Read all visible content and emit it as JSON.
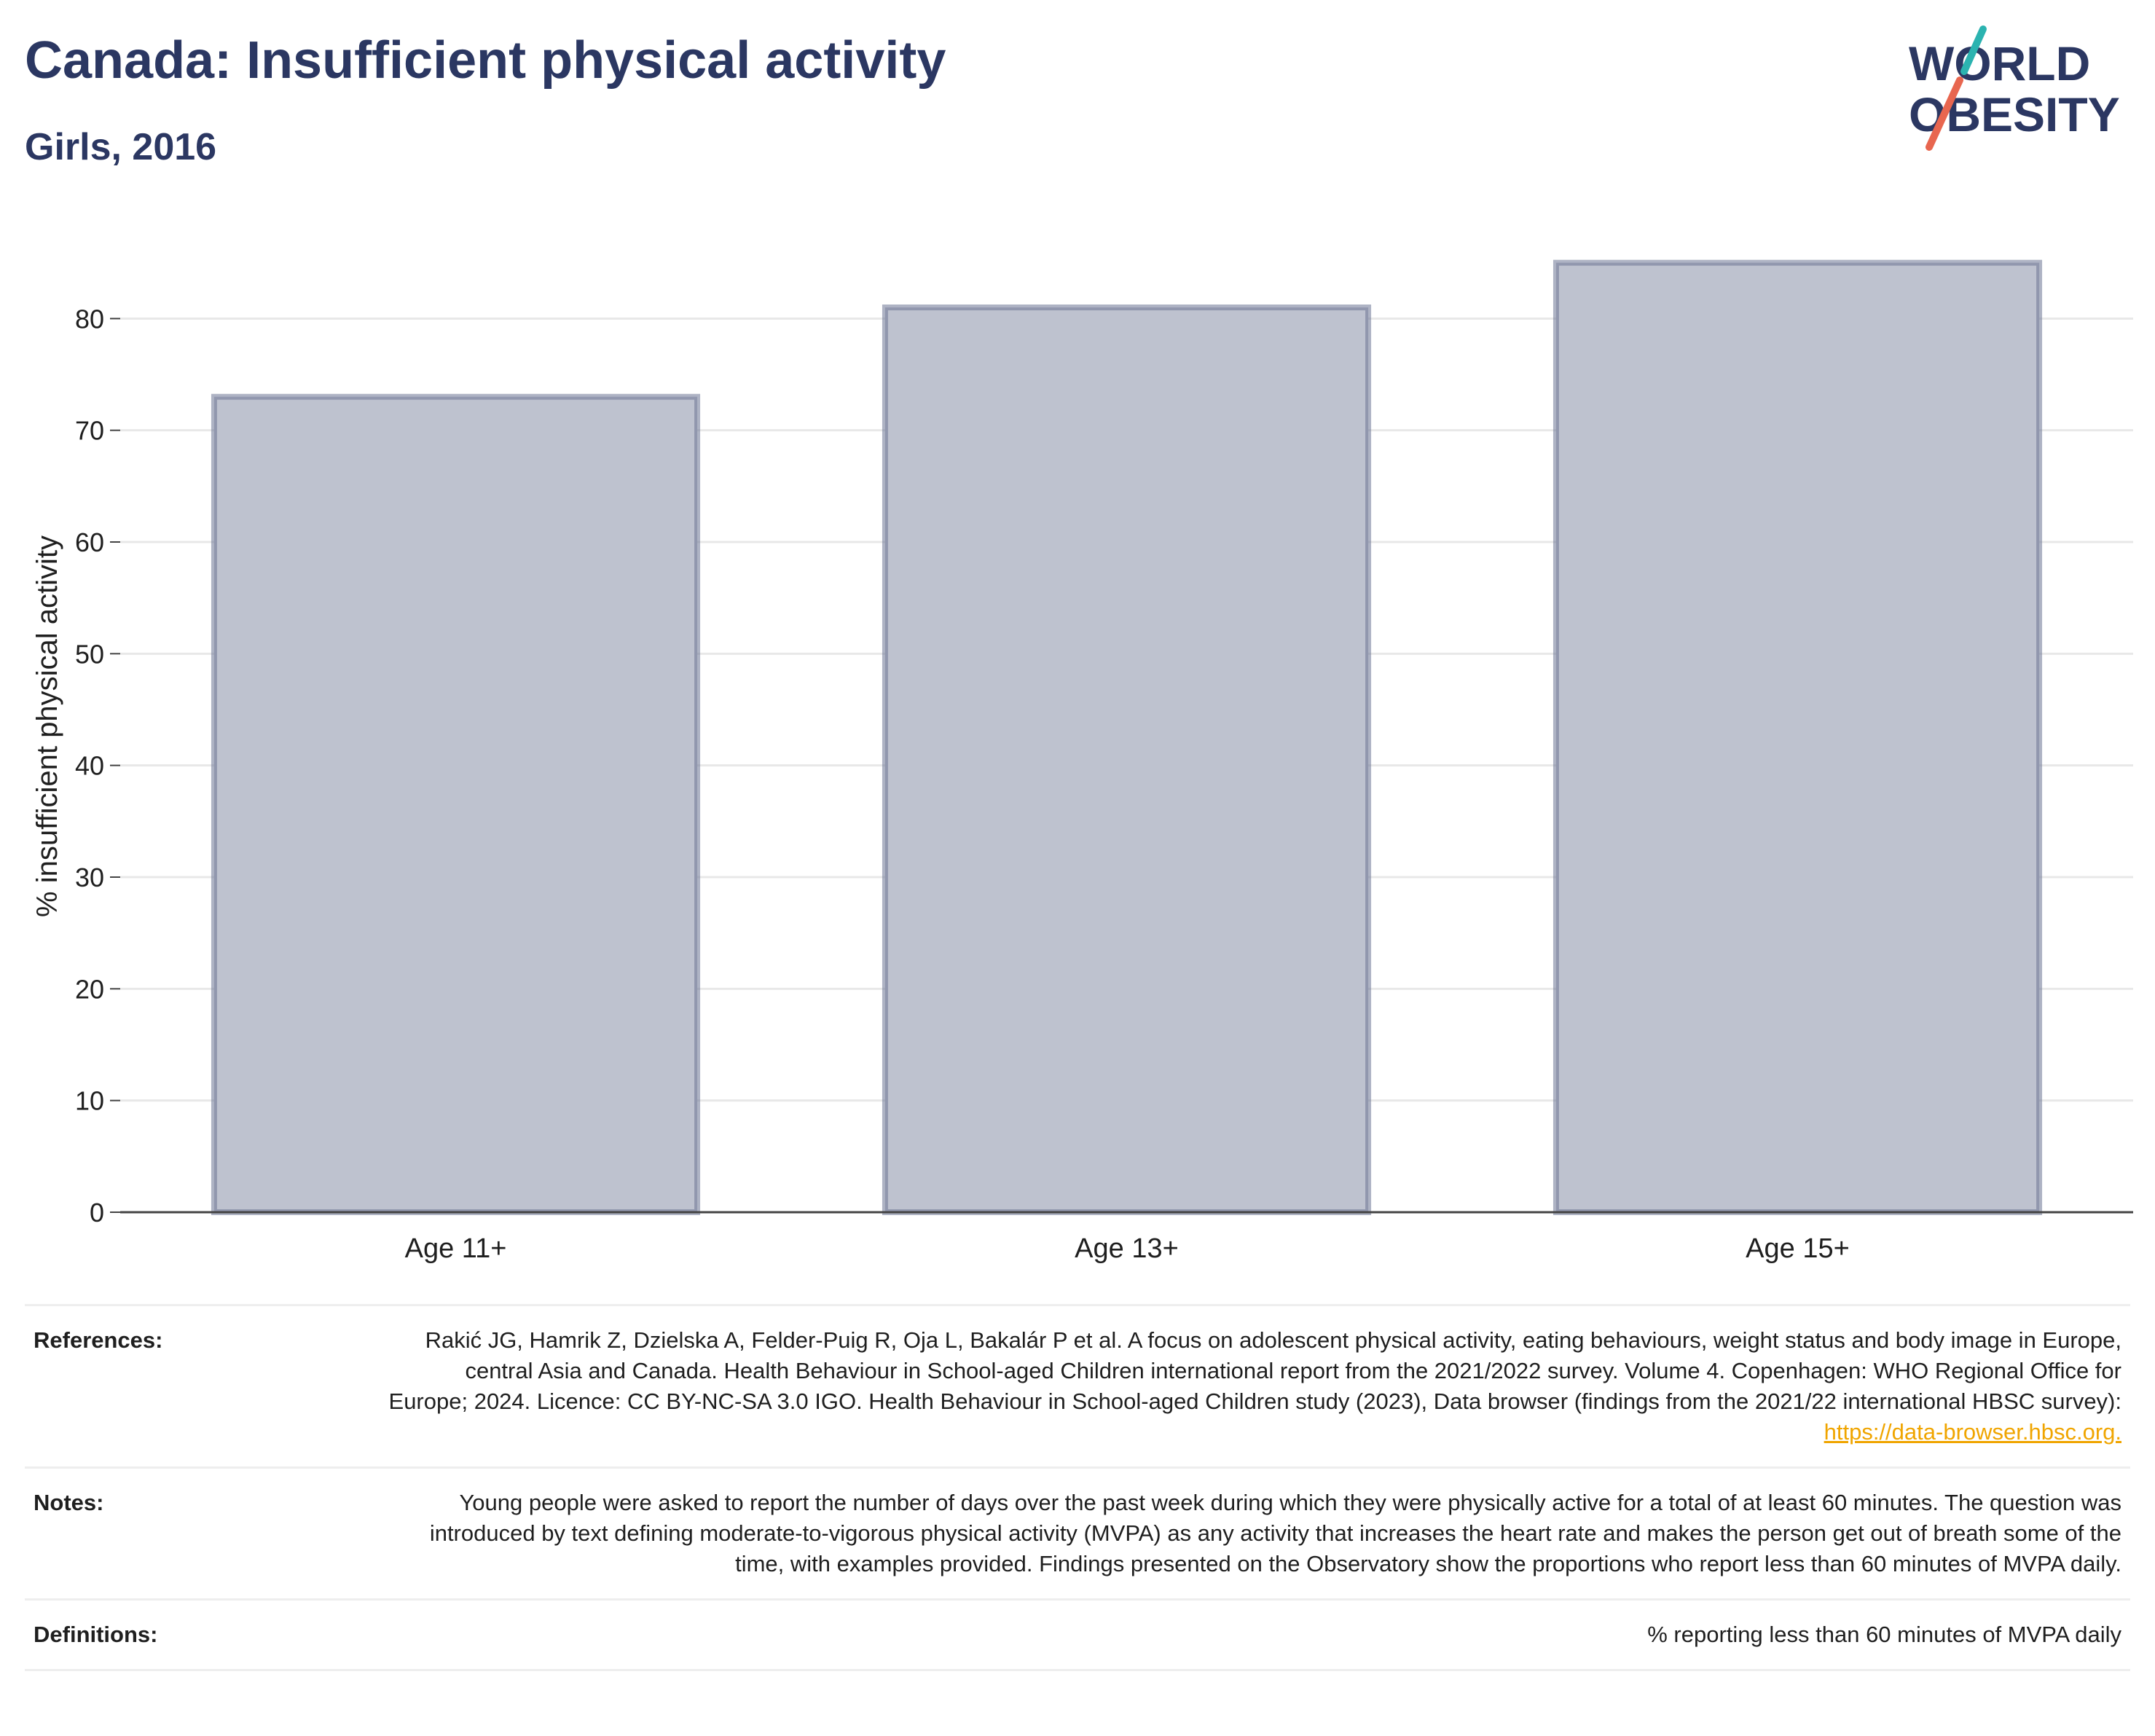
{
  "header": {
    "title": "Canada: Insufficient physical activity",
    "subtitle": "Girls, 2016"
  },
  "logo": {
    "line1": "WORLD",
    "line2": "OBESITY",
    "text_color": "#2b3762",
    "slash_top_color": "#2bb3b0",
    "slash_bottom_color": "#e8664f"
  },
  "chart_data": {
    "type": "bar",
    "categories": [
      "Age 11+",
      "Age 13+",
      "Age 15+"
    ],
    "values": [
      73,
      81,
      85
    ],
    "ylabel": "% insufficient physical activity",
    "ylim": [
      0,
      87
    ],
    "yticks": [
      0,
      10,
      20,
      30,
      40,
      50,
      60,
      70,
      80
    ],
    "grid": true,
    "bar_fill": "#bec2cf",
    "bar_stroke": "#6b7494"
  },
  "meta": {
    "references": {
      "label": "References:",
      "text": "Rakić JG, Hamrik Z, Dzielska A, Felder-Puig R, Oja L, Bakalár P et al. A focus on adolescent physical activity, eating behaviours, weight status and body image in Europe, central Asia and Canada. Health Behaviour in School-aged Children international report from the 2021/2022 survey. Volume 4. Copenhagen: WHO Regional Office for Europe; 2024. Licence: CC BY-NC-SA 3.0 IGO. Health Behaviour in School-aged Children study (2023), Data browser (findings from the 2021/22 international HBSC survey): ",
      "link": "https://data-browser.hbsc.org."
    },
    "notes": {
      "label": "Notes:",
      "text": "Young people were asked to report the number of days over the past week during which they were physically active for a total of at least 60 minutes. The question was introduced by text defining moderate-to-vigorous physical activity (MVPA) as any activity that increases the heart rate and makes the person get out of breath some of the time, with examples provided. Findings presented on the Observatory show the proportions who report less than 60 minutes of MVPA daily."
    },
    "definitions": {
      "label": "Definitions:",
      "text": "% reporting less than 60 minutes of MVPA daily"
    }
  }
}
